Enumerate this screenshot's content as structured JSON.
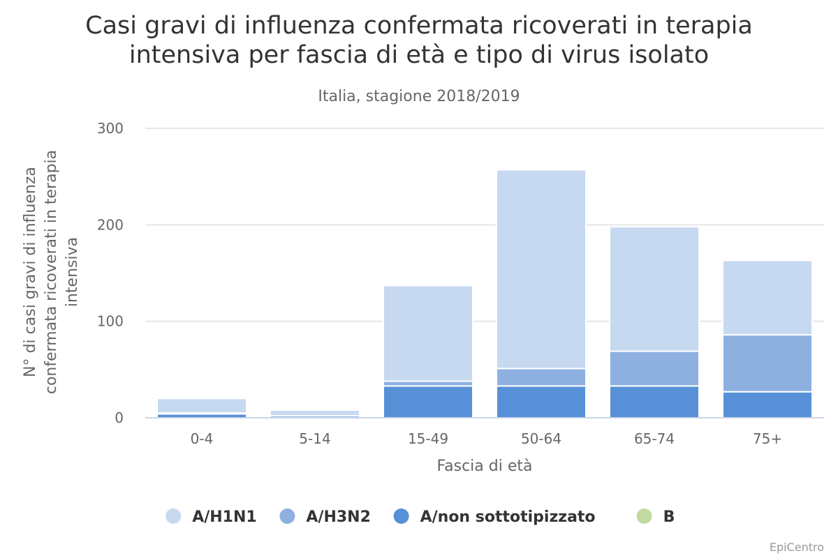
{
  "chart_data": {
    "type": "bar",
    "stacked": true,
    "title": "Casi gravi di influenza confermata ricoverati in terapia intensiva per fascia di età e tipo di virus isolato",
    "title_lines": [
      "Casi gravi di influenza confermata ricoverati in terapia",
      "intensiva per fascia di età e tipo di virus isolato"
    ],
    "subtitle": "Italia, stagione 2018/2019",
    "xlabel": "Fascia di età",
    "ylabel": "N° di casi gravi di influenza confermata ricoverati in terapia intensiva",
    "ylabel_lines": [
      "N° di casi gravi di influenza",
      "confermata ricoverati in terapia",
      "intensiva"
    ],
    "categories": [
      "0-4",
      "5-14",
      "15-49",
      "50-64",
      "65-74",
      "75+"
    ],
    "ylim": [
      0,
      300
    ],
    "yticks": [
      0,
      100,
      200,
      300
    ],
    "grid": true,
    "legend_position": "bottom",
    "series": [
      {
        "name": "A/non sottotipizzato",
        "color": "#5790d6",
        "values": [
          4,
          2,
          33,
          33,
          33,
          27
        ]
      },
      {
        "name": "A/H3N2",
        "color": "#8db0e1",
        "values": [
          1,
          0,
          5,
          18,
          36,
          59
        ]
      },
      {
        "name": "A/H1N1",
        "color": "#c6d9f0",
        "values": [
          15,
          6,
          99,
          206,
          129,
          77
        ]
      },
      {
        "name": "B",
        "color": "#c3d9a2",
        "values": [
          0,
          0,
          0,
          0,
          0,
          0
        ]
      }
    ],
    "legend_order": [
      "A/H1N1",
      "A/H3N2",
      "A/non sottotipizzato",
      "B"
    ]
  },
  "credits": "EpiCentro"
}
